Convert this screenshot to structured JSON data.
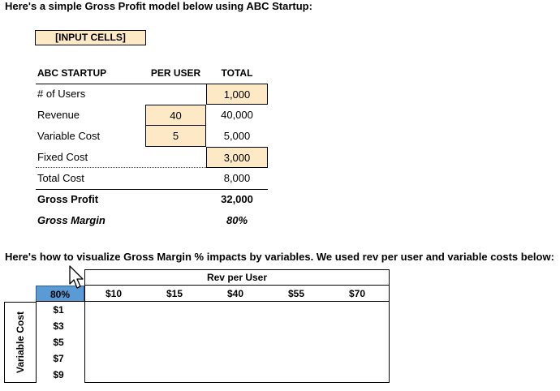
{
  "intro_text": "Here's a simple Gross Profit model below using ABC Startup:",
  "legend_label": "[INPUT CELLS]",
  "model": {
    "headers": {
      "label": "ABC STARTUP",
      "per_user": "PER USER",
      "total": "TOTAL"
    },
    "rows": [
      {
        "label": "# of Users",
        "per_user": "",
        "total": "1,000"
      },
      {
        "label": "Revenue",
        "per_user": "40",
        "total": "40,000"
      },
      {
        "label": "Variable Cost",
        "per_user": "5",
        "total": "5,000"
      },
      {
        "label": "Fixed Cost",
        "per_user": "",
        "total": "3,000"
      },
      {
        "label": "Total Cost",
        "per_user": "",
        "total": "8,000"
      },
      {
        "label": "Gross Profit",
        "per_user": "",
        "total": "32,000"
      },
      {
        "label": "Gross Margin",
        "per_user": "",
        "total": "80%"
      }
    ]
  },
  "viz_intro_text": "Here's how to visualize Gross Margin % impacts by variables. We used rev per user and variable costs below:",
  "data_table": {
    "col_title": "Rev per User",
    "row_title": "Variable Cost",
    "corner_value": "80%",
    "columns": [
      "$10",
      "$15",
      "$40",
      "$55",
      "$70"
    ],
    "rows": [
      "$1",
      "$3",
      "$5",
      "$7",
      "$9"
    ]
  },
  "colors": {
    "input_fill": "#fde9c6",
    "corner_fill": "#5b9bd5"
  }
}
